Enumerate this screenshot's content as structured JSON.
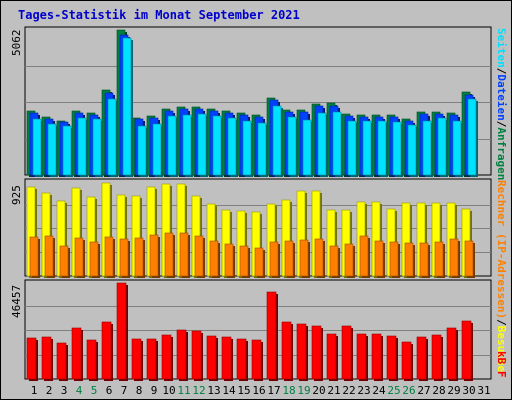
{
  "title": "Tages-Statistik im Monat September 2021",
  "colors": {
    "hits": "#008040",
    "files": "#0040ff",
    "pages": "#00e0ff",
    "visits": "#ffff00",
    "sites": "#ff8000",
    "kbytes": "#ff0000",
    "weekend_day": "#008040",
    "weekday": "#000000"
  },
  "panels": {
    "top": {
      "max_label": "5062",
      "legend": [
        "Anfragen",
        "Dateien",
        "Seiten"
      ]
    },
    "middle": {
      "max_label": "925",
      "legend": [
        "Besuche",
        "Rechner (IP-Adressen)"
      ]
    },
    "bottom": {
      "max_label": "46457",
      "legend": [
        "kB F"
      ]
    }
  },
  "legend_separator": "/",
  "chart_data": [
    {
      "type": "bar",
      "title": "Tages-Statistik im Monat September 2021",
      "categories": [
        "1",
        "2",
        "3",
        "4",
        "5",
        "6",
        "7",
        "8",
        "9",
        "10",
        "11",
        "12",
        "13",
        "14",
        "15",
        "16",
        "17",
        "18",
        "19",
        "20",
        "21",
        "22",
        "23",
        "24",
        "25",
        "26",
        "27",
        "28",
        "29",
        "30",
        "31"
      ],
      "weekend_days": [
        "4",
        "5",
        "11",
        "12",
        "18",
        "19",
        "25",
        "26"
      ],
      "ylim": [
        0,
        5062
      ],
      "series": [
        {
          "name": "Anfragen",
          "values": [
            2250,
            2020,
            1900,
            2250,
            2150,
            2950,
            5062,
            2000,
            2050,
            2300,
            2380,
            2380,
            2320,
            2250,
            2150,
            2080,
            2700,
            2280,
            2260,
            2480,
            2500,
            2120,
            2100,
            2100,
            2100,
            1950,
            2200,
            2200,
            2150,
            2900,
            0
          ]
        },
        {
          "name": "Dateien",
          "values": [
            2180,
            1960,
            1840,
            2180,
            2080,
            2850,
            4900,
            1940,
            1990,
            2230,
            2310,
            2310,
            2250,
            2180,
            2080,
            2020,
            2620,
            2210,
            2190,
            2400,
            2420,
            2060,
            2040,
            2040,
            2040,
            1890,
            2130,
            2130,
            2080,
            2800,
            0
          ]
        },
        {
          "name": "Seiten",
          "values": [
            1950,
            1780,
            1700,
            2000,
            1950,
            2650,
            4800,
            1720,
            1780,
            2050,
            2100,
            2120,
            2060,
            1980,
            1900,
            1820,
            2400,
            2020,
            1920,
            2180,
            2200,
            1880,
            1900,
            1880,
            1860,
            1760,
            1900,
            1980,
            1900,
            2650,
            0
          ]
        }
      ]
    },
    {
      "type": "bar",
      "ylim": [
        0,
        925
      ],
      "series": [
        {
          "name": "Besuche",
          "values": [
            880,
            820,
            740,
            870,
            780,
            920,
            800,
            790,
            880,
            910,
            910,
            790,
            710,
            650,
            640,
            630,
            710,
            750,
            840,
            840,
            650,
            650,
            730,
            730,
            660,
            720,
            720,
            720,
            720,
            660,
            0
          ]
        },
        {
          "name": "Rechner (IP-Adressen)",
          "values": [
            380,
            390,
            300,
            370,
            330,
            380,
            360,
            370,
            400,
            420,
            420,
            390,
            340,
            310,
            300,
            280,
            330,
            340,
            350,
            360,
            300,
            310,
            390,
            340,
            330,
            320,
            320,
            330,
            360,
            340,
            0
          ]
        }
      ]
    },
    {
      "type": "bar",
      "ylim": [
        0,
        46457
      ],
      "series": [
        {
          "name": "kB F",
          "values": [
            20000,
            20500,
            17500,
            24500,
            19000,
            27500,
            46457,
            19500,
            19500,
            21500,
            23500,
            23000,
            21000,
            20500,
            19500,
            19000,
            42000,
            27500,
            26500,
            25500,
            22000,
            25500,
            21800,
            21800,
            21000,
            18000,
            20500,
            21500,
            24500,
            28000,
            0
          ]
        }
      ]
    }
  ]
}
